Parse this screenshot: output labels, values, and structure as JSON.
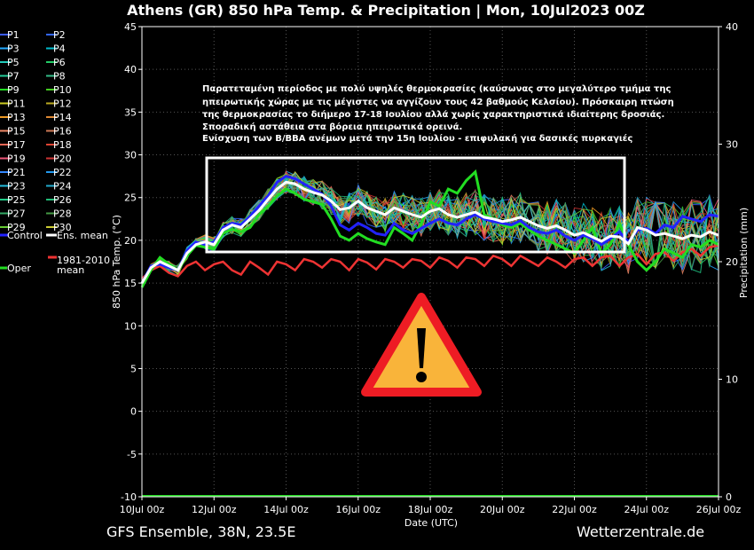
{
  "header": {
    "title": "Athens  (GR)  850 hPa Temp. & Precipitation | Mon, 10Jul2023 00Z"
  },
  "footer": {
    "left": "GFS Ensemble, 38N, 23.5E",
    "right": "Wetterzentrale.de"
  },
  "annotation_lines": [
    "Παρατεταμένη περίοδος με πολύ υψηλές θερμοκρασίες (καύσωνας στο μεγαλύτερο τμήμα της",
    "ηπειρωτικής χώρας με τις μέγιστες να αγγίζουν τους 42 βαθμούς Κελσίου). Πρόσκαιρη πτώση",
    "της θερμοκρασίας το διήμερο 17-18 Ιουλίου αλλά χωρίς χαρακτηριστικά ιδιαίτερης δροσιάς.",
    "Σποραδική αστάθεια στα βόρεια ηπειρωτικά ορεινά.",
    "Ενίσχυση των Β/ΒΒΑ ανέμων μετά την 15η Ιουλίου - επιφυλακή για δασικές πυρκαγιές"
  ],
  "icons": {
    "warning": "warning-triangle-icon"
  },
  "colors": {
    "ens_mean": "#ffffff",
    "control": "#2222ff",
    "oper": "#22dd22",
    "clim": "#ee3333",
    "warning_fill": "#f9b43a",
    "warning_border": "#ee1c24"
  },
  "chart_data": {
    "type": "line",
    "xlabel": "Date (UTC)",
    "ylabel": "850 hPa Temp. (°C)",
    "y2label": "Precipitation (mm)",
    "ylim": [
      -10,
      45
    ],
    "y2lim": [
      0,
      40
    ],
    "xlim": [
      "2023-07-10 00Z",
      "2023-07-26 00Z"
    ],
    "yticks": [
      -10,
      -5,
      0,
      5,
      10,
      15,
      20,
      25,
      30,
      35,
      40,
      45
    ],
    "y2ticks": [
      0,
      10,
      20,
      30,
      40
    ],
    "xticks": [
      "10Jul 00z",
      "12Jul 00z",
      "14Jul 00z",
      "16Jul 00z",
      "18Jul 00z",
      "20Jul 00z",
      "22Jul 00z",
      "24Jul 00z",
      "26Jul 00z"
    ],
    "legend": {
      "placement": "left",
      "entries": [
        "P1",
        "P2",
        "P3",
        "P4",
        "P5",
        "P6",
        "P7",
        "P8",
        "P9",
        "P10",
        "P11",
        "P12",
        "P13",
        "P14",
        "P15",
        "P16",
        "P17",
        "P18",
        "P19",
        "P20",
        "P21",
        "P22",
        "P23",
        "P24",
        "P25",
        "P26",
        "P27",
        "P28",
        "P29",
        "P30",
        "Control",
        "Ens. mean",
        "Oper",
        "1981-2010 mean"
      ],
      "colors": [
        "#3b5bff",
        "#3366ff",
        "#22aaff",
        "#00bbcc",
        "#22ccbb",
        "#22cc66",
        "#22cc99",
        "#33bb88",
        "#22dd22",
        "#44cc22",
        "#cccc22",
        "#bbaa22",
        "#ee9922",
        "#dd8833",
        "#ee8866",
        "#cc7755",
        "#ee6655",
        "#dd4433",
        "#ee5577",
        "#cc3333",
        "#3388ff",
        "#2299ee",
        "#22bbdd",
        "#22aacc",
        "#22cc88",
        "#22bb77",
        "#33aa66",
        "#449944",
        "#66cc33",
        "#cccc33",
        "#2222ff",
        "#ffffff",
        "#22dd22",
        "#ee3333"
      ]
    },
    "series": [
      {
        "name": "Ens. mean",
        "x": [
          0,
          0.25,
          0.5,
          0.75,
          1,
          1.25,
          1.5,
          1.75,
          2,
          2.25,
          2.5,
          2.75,
          3,
          3.25,
          3.5,
          3.75,
          4,
          4.25,
          4.5,
          4.75,
          5,
          5.25,
          5.5,
          5.75,
          6,
          6.25,
          6.5,
          6.75,
          7,
          7.25,
          7.5,
          7.75,
          8,
          8.25,
          8.5,
          8.75,
          9,
          9.25,
          9.5,
          9.75,
          10,
          10.25,
          10.5,
          10.75,
          11,
          11.25,
          11.5,
          11.75,
          12,
          12.25,
          12.5,
          12.75,
          13,
          13.25,
          13.5,
          13.75,
          14,
          14.25,
          14.5,
          14.75,
          15,
          15.25,
          15.5,
          15.75,
          16
        ],
        "y": [
          15.0,
          16.8,
          17.5,
          17.0,
          16.5,
          18.5,
          19.5,
          19.8,
          19.5,
          21.2,
          21.8,
          21.5,
          22.5,
          23.5,
          24.8,
          26.0,
          26.8,
          26.6,
          26.0,
          25.6,
          25.3,
          24.6,
          23.6,
          23.8,
          24.6,
          23.8,
          23.4,
          23.0,
          23.8,
          23.4,
          23.0,
          22.7,
          23.4,
          23.7,
          23.0,
          22.7,
          23.0,
          23.3,
          22.7,
          22.5,
          22.2,
          22.4,
          22.7,
          22.2,
          21.7,
          21.4,
          21.7,
          21.2,
          20.6,
          20.9,
          20.4,
          19.9,
          20.5,
          20.4,
          19.6,
          21.5,
          21.2,
          20.6,
          20.8,
          20.5,
          20.2,
          20.6,
          20.4,
          21.0,
          20.6
        ]
      },
      {
        "name": "Control",
        "x": [
          0,
          0.25,
          0.5,
          0.75,
          1,
          1.25,
          1.5,
          1.75,
          2,
          2.25,
          2.5,
          2.75,
          3,
          3.25,
          3.5,
          3.75,
          4,
          4.25,
          4.5,
          4.75,
          5,
          5.25,
          5.5,
          5.75,
          6,
          6.25,
          6.5,
          6.75,
          7,
          7.25,
          7.5,
          7.75,
          8,
          8.25,
          8.5,
          8.75,
          9,
          9.25,
          9.5,
          9.75,
          10,
          10.25,
          10.5,
          10.75,
          11,
          11.25,
          11.5,
          11.75,
          12,
          12.25,
          12.5,
          12.75,
          13,
          13.25,
          13.5,
          13.75,
          14,
          14.25,
          14.5,
          14.75,
          15,
          15.25,
          15.5,
          15.75,
          16
        ],
        "y": [
          15.0,
          17.0,
          17.2,
          16.8,
          16.5,
          18.8,
          19.8,
          19.5,
          19.8,
          21.5,
          22.0,
          21.8,
          22.8,
          24.0,
          25.2,
          26.8,
          27.5,
          27.2,
          26.6,
          26.0,
          25.4,
          24.0,
          21.8,
          21.2,
          22.0,
          21.5,
          20.8,
          20.6,
          22.0,
          21.2,
          20.8,
          21.4,
          22.0,
          22.5,
          22.0,
          21.8,
          22.5,
          23.0,
          22.5,
          22.2,
          22.0,
          21.8,
          22.3,
          21.5,
          21.0,
          20.8,
          21.2,
          20.5,
          20.0,
          20.6,
          20.2,
          19.5,
          20.2,
          21.0,
          19.8,
          21.2,
          21.4,
          20.8,
          21.8,
          21.5,
          22.8,
          22.5,
          22.2,
          23.0,
          22.8
        ]
      },
      {
        "name": "Oper",
        "x": [
          0,
          0.25,
          0.5,
          0.75,
          1,
          1.25,
          1.5,
          1.75,
          2,
          2.25,
          2.5,
          2.75,
          3,
          3.25,
          3.5,
          3.75,
          4,
          4.25,
          4.5,
          4.75,
          5,
          5.25,
          5.5,
          5.75,
          6,
          6.25,
          6.5,
          6.75,
          7,
          7.25,
          7.5,
          7.75,
          8,
          8.25,
          8.5,
          8.75,
          9,
          9.25,
          9.5,
          9.75,
          10,
          10.25,
          10.5,
          10.75,
          11,
          11.25,
          11.5,
          11.75,
          12,
          12.25,
          12.5,
          12.75,
          13,
          13.25,
          13.5,
          13.75,
          14,
          14.25,
          14.5,
          14.75,
          15,
          15.25,
          15.5,
          15.75,
          16
        ],
        "y": [
          14.5,
          16.5,
          18.0,
          17.2,
          16.5,
          18.2,
          19.4,
          19.2,
          19.0,
          20.8,
          21.3,
          21.0,
          21.5,
          23.0,
          24.0,
          25.2,
          26.0,
          25.5,
          24.8,
          24.5,
          24.2,
          22.5,
          20.5,
          20.0,
          20.8,
          20.2,
          19.8,
          19.5,
          21.5,
          20.8,
          20.0,
          22.0,
          24.5,
          24.0,
          26.0,
          25.5,
          27.0,
          28.0,
          23.0,
          22.5,
          21.8,
          21.5,
          22.0,
          21.2,
          20.5,
          20.0,
          19.5,
          19.0,
          18.5,
          20.0,
          21.5,
          18.5,
          19.5,
          22.0,
          19.5,
          17.5,
          16.5,
          17.5,
          19.0,
          18.5,
          18.0,
          19.5,
          19.2,
          20.0,
          19.5
        ]
      },
      {
        "name": "1981-2010 mean",
        "x": [
          0,
          0.25,
          0.5,
          0.75,
          1,
          1.25,
          1.5,
          1.75,
          2,
          2.25,
          2.5,
          2.75,
          3,
          3.25,
          3.5,
          3.75,
          4,
          4.25,
          4.5,
          4.75,
          5,
          5.25,
          5.5,
          5.75,
          6,
          6.25,
          6.5,
          6.75,
          7,
          7.25,
          7.5,
          7.75,
          8,
          8.25,
          8.5,
          8.75,
          9,
          9.25,
          9.5,
          9.75,
          10,
          10.25,
          10.5,
          10.75,
          11,
          11.25,
          11.5,
          11.75,
          12,
          12.25,
          12.5,
          12.75,
          13,
          13.25,
          13.5,
          13.75,
          14,
          14.25,
          14.5,
          14.75,
          15,
          15.25,
          15.5,
          15.75,
          16
        ],
        "y": [
          15.5,
          16.5,
          17.0,
          16.2,
          15.8,
          17.0,
          17.5,
          16.5,
          17.2,
          17.5,
          16.5,
          16.0,
          17.5,
          16.8,
          16.0,
          17.5,
          17.2,
          16.5,
          17.8,
          17.5,
          16.8,
          17.8,
          17.5,
          16.5,
          17.8,
          17.4,
          16.6,
          17.8,
          17.5,
          16.8,
          17.8,
          17.6,
          16.8,
          18.0,
          17.6,
          16.8,
          18.0,
          17.8,
          17.0,
          18.2,
          17.8,
          17.0,
          18.2,
          17.6,
          17.0,
          18.0,
          17.5,
          16.8,
          17.8,
          18.0,
          17.0,
          18.0,
          18.2,
          17.0,
          18.0,
          18.4,
          17.2,
          18.4,
          18.6,
          17.6,
          18.6,
          19.0,
          18.2,
          19.2,
          19.4
        ]
      },
      {
        "name": "Precipitation",
        "x": [
          0,
          16
        ],
        "y": [
          0,
          0
        ]
      }
    ]
  }
}
